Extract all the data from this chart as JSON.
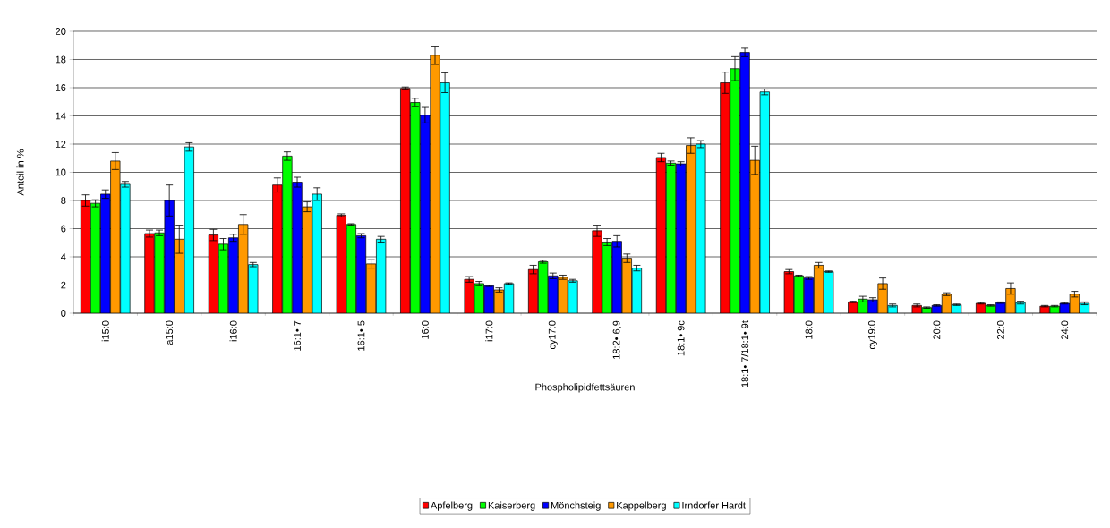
{
  "chart_data": {
    "type": "bar",
    "xlabel": "Phospholipidfettsäuren",
    "ylabel": "Anteil in %",
    "categories": [
      "i15:0",
      "a15:0",
      "i16:0",
      "16:1• 7",
      "16:1• 5",
      "16:0",
      "i17:0",
      "cy17:0",
      "18:2• 6,9",
      "18:1• 9c",
      "18:1• 7/18:1• 9t",
      "18:0",
      "cy19:0",
      "20:0",
      "22:0",
      "24:0"
    ],
    "series": [
      {
        "name": "Apfelberg",
        "color": "#ff0000",
        "values": [
          8.0,
          5.65,
          5.55,
          9.1,
          6.95,
          15.95,
          2.4,
          3.1,
          5.85,
          11.05,
          16.35,
          2.95,
          0.8,
          0.55,
          0.7,
          0.5
        ],
        "errors": [
          0.4,
          0.25,
          0.4,
          0.5,
          0.1,
          0.1,
          0.2,
          0.3,
          0.4,
          0.3,
          0.75,
          0.15,
          0.05,
          0.1,
          0.05,
          0.05
        ]
      },
      {
        "name": "Kaiserberg",
        "color": "#00ff00",
        "values": [
          7.8,
          5.7,
          4.9,
          11.15,
          6.3,
          14.95,
          2.1,
          3.65,
          5.05,
          10.65,
          17.35,
          2.65,
          1.0,
          0.4,
          0.55,
          0.5
        ],
        "errors": [
          0.25,
          0.2,
          0.4,
          0.3,
          0.05,
          0.3,
          0.15,
          0.1,
          0.25,
          0.15,
          0.85,
          0.05,
          0.2,
          0.05,
          0.05,
          0.05
        ]
      },
      {
        "name": "Mönchsteig",
        "color": "#0000ff",
        "values": [
          8.45,
          8.0,
          5.35,
          9.3,
          5.5,
          14.05,
          1.95,
          2.65,
          5.1,
          10.6,
          18.5,
          2.5,
          0.95,
          0.55,
          0.75,
          0.7
        ],
        "errors": [
          0.3,
          1.1,
          0.25,
          0.35,
          0.15,
          0.55,
          0.05,
          0.2,
          0.4,
          0.15,
          0.3,
          0.1,
          0.15,
          0.05,
          0.05,
          0.05
        ]
      },
      {
        "name": "Kappelberg",
        "color": "#ff9900",
        "values": [
          10.8,
          5.25,
          6.3,
          7.55,
          3.5,
          18.3,
          1.65,
          2.55,
          3.9,
          11.9,
          10.85,
          3.4,
          2.1,
          1.35,
          1.75,
          1.35
        ],
        "errors": [
          0.6,
          1.0,
          0.7,
          0.35,
          0.3,
          0.65,
          0.15,
          0.15,
          0.3,
          0.55,
          1.0,
          0.2,
          0.4,
          0.1,
          0.4,
          0.2
        ]
      },
      {
        "name": "Irndorfer Hardt",
        "color": "#00ffff",
        "values": [
          9.15,
          11.8,
          3.45,
          8.45,
          5.25,
          16.35,
          2.1,
          2.3,
          3.2,
          12.0,
          15.7,
          2.95,
          0.55,
          0.6,
          0.75,
          0.7
        ],
        "errors": [
          0.2,
          0.3,
          0.15,
          0.45,
          0.2,
          0.7,
          0.05,
          0.1,
          0.2,
          0.25,
          0.2,
          0.05,
          0.1,
          0.05,
          0.1,
          0.1
        ]
      }
    ],
    "ylim": [
      0,
      20
    ],
    "yticks": [
      0,
      2,
      4,
      6,
      8,
      10,
      12,
      14,
      16,
      18,
      20
    ],
    "grid": "y",
    "legend": "bottom"
  }
}
